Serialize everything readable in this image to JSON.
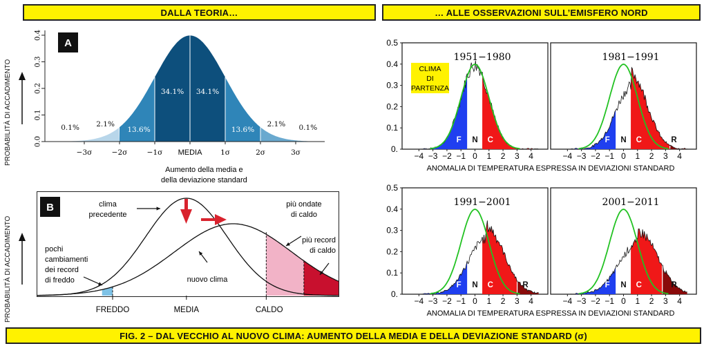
{
  "banners": {
    "left": "DALLA TEORIA…",
    "right": "… ALLE OSSERVAZIONI SULL’EMISFERO NORD",
    "footer": "FIG. 2 – DAL VECCHIO AL NUOVO CLIMA: AUMENTO DELLA MEDIA E DELLA DEVIAZIONE STANDARD (σ)"
  },
  "y_axis_label": "PROBABILITÀ DI ACCADIMENTO",
  "panel_a": {
    "badge": "A",
    "yticks": [
      "0.0",
      "0.1",
      "0.2",
      "0.3",
      "0.4"
    ],
    "xticks": [
      "−3σ",
      "−2σ",
      "−1σ",
      "MEDIA",
      "1σ",
      "2σ",
      "3σ"
    ],
    "percentages": [
      "0.1%",
      "2.1%",
      "13.6%",
      "34.1%",
      "34.1%",
      "13.6%",
      "2.1%",
      "0.1%"
    ],
    "caption_line1": "Aumento della media e",
    "caption_line2": "della deviazione standard",
    "colors": {
      "center": "#0d4f7c",
      "mid": "#2f85b8",
      "outer": "#6aa9cf",
      "tail": "#b8d6ea"
    }
  },
  "panel_b": {
    "badge": "B",
    "xlabels": [
      "FREDDO",
      "MEDIA",
      "CALDO"
    ],
    "ann_prev_1": "clima",
    "ann_prev_2": "precedente",
    "ann_waves_1": "più ondate",
    "ann_waves_2": "di caldo",
    "ann_records_1": "più record",
    "ann_records_2": "di caldo",
    "ann_cold_1": "pochi",
    "ann_cold_2": "cambiamenti",
    "ann_cold_3": "dei record",
    "ann_cold_4": "di freddo",
    "ann_new": "nuovo clima",
    "colors": {
      "light_pink": "#f2b3c7",
      "dark_red": "#c8102e",
      "light_blue": "#7ec2e6",
      "arrow_red": "#d9232e"
    }
  },
  "obs": {
    "yticks": [
      "0.",
      "0.1",
      "0.2",
      "0.3",
      "0.4",
      "0.5"
    ],
    "xticks": [
      "−4",
      "−3",
      "−2",
      "−1",
      "0",
      "1",
      "2",
      "3",
      "4"
    ],
    "xlabel": "ANOMALIA DI TEMPERATURA ESPRESSA IN DEVIAZIONI STANDARD",
    "clima_label_1": "CLIMA",
    "clima_label_2": "DI",
    "clima_label_3": "PARTENZA",
    "panels": [
      {
        "title": "1951−1980",
        "letters": [
          "F",
          "N",
          "C"
        ]
      },
      {
        "title": "1981−1991",
        "letters": [
          "F",
          "N",
          "C",
          "R"
        ]
      },
      {
        "title": "1991−2001",
        "letters": [
          "F",
          "N",
          "C",
          "R"
        ]
      },
      {
        "title": "2001−2011",
        "letters": [
          "F",
          "N",
          "C",
          "R"
        ]
      }
    ],
    "colors": {
      "blue": "#1f3ff0",
      "red": "#f01818",
      "darkred": "#8a0a0a",
      "green": "#22c222",
      "yellow": "#fff200"
    }
  }
}
